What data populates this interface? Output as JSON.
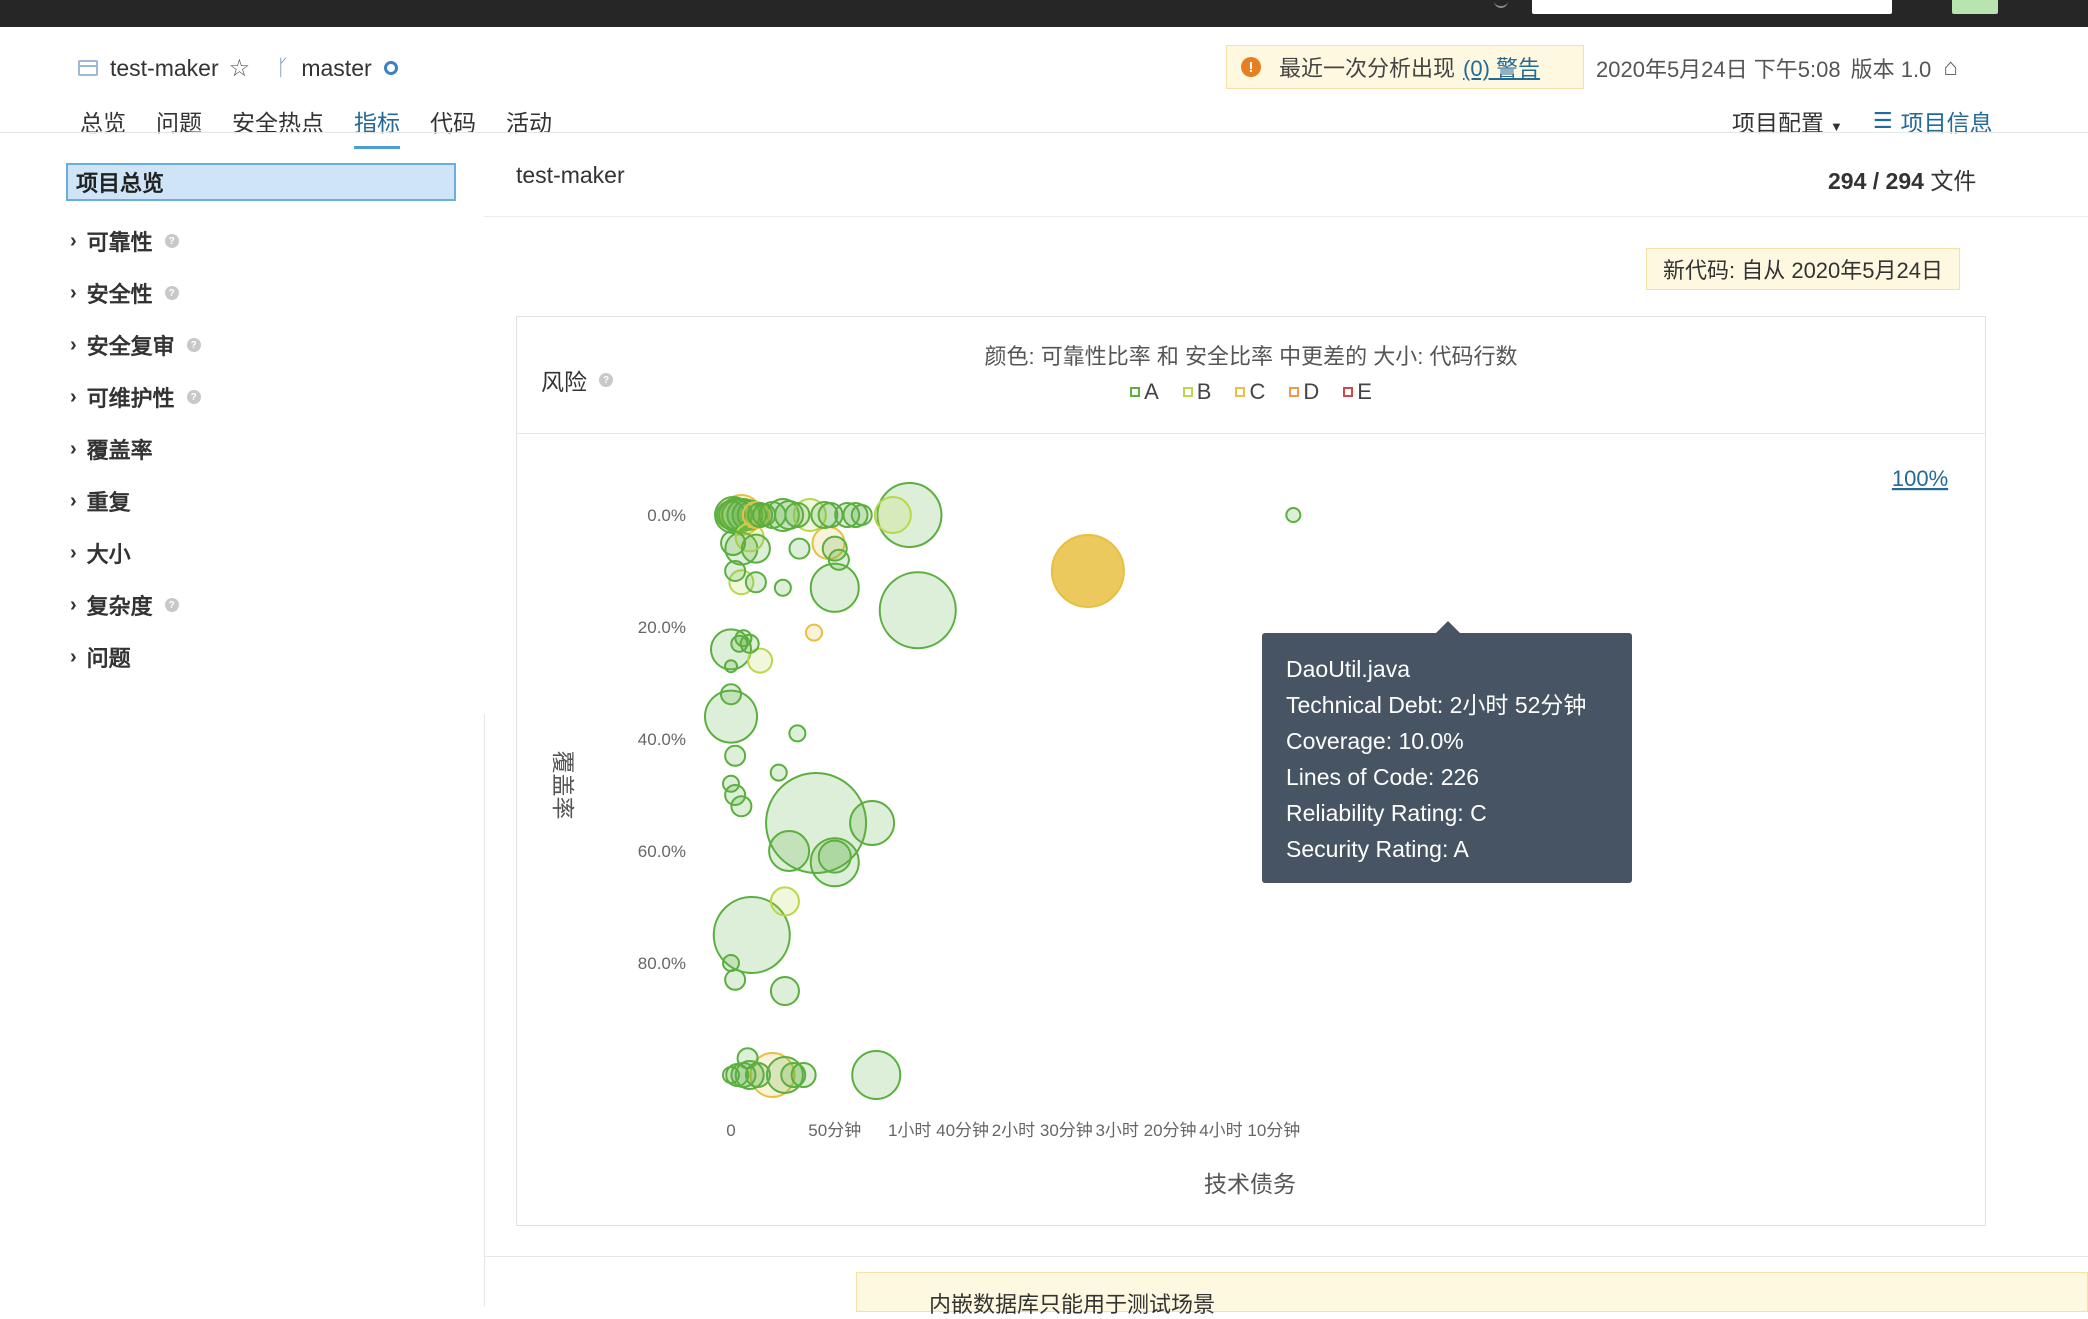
{
  "project": {
    "name": "test-maker",
    "branch": "master"
  },
  "warning": {
    "prefix": "最近一次分析出现",
    "link": "(0) 警告"
  },
  "analysis_meta": {
    "date": "2020年5月24日 下午5:08",
    "version": "版本 1.0"
  },
  "nav": {
    "tabs": [
      "总览",
      "问题",
      "安全热点",
      "指标",
      "代码",
      "活动"
    ],
    "active": "指标",
    "project_config": "项目配置",
    "project_info": "项目信息"
  },
  "sidebar": {
    "selected": "项目总览",
    "items": [
      {
        "label": "可靠性",
        "help": true
      },
      {
        "label": "安全性",
        "help": true
      },
      {
        "label": "安全复审",
        "help": true
      },
      {
        "label": "可维护性",
        "help": true
      },
      {
        "label": "覆盖率",
        "help": false
      },
      {
        "label": "重复",
        "help": false
      },
      {
        "label": "大小",
        "help": false
      },
      {
        "label": "复杂度",
        "help": true
      },
      {
        "label": "问题",
        "help": false
      }
    ]
  },
  "main": {
    "crumb": "test-maker",
    "files_count": "294 / 294",
    "files_label": "文件",
    "new_code": "新代码: 自从 2020年5月24日",
    "bottom_notice": "内嵌数据库只能用于测试场景"
  },
  "chart_data": {
    "type": "scatter",
    "title": "风险",
    "subtitle": "颜色: 可靠性比率 和 安全比率 中更差的  大小: 代码行数",
    "xlabel": "技术债务",
    "ylabel": "覆盖率",
    "x_unit": "minutes",
    "xlim": [
      0,
      280
    ],
    "ylim": [
      100,
      0
    ],
    "x_ticks": [
      {
        "value": 0,
        "label": "0"
      },
      {
        "value": 50,
        "label": "50分钟"
      },
      {
        "value": 100,
        "label": "1小时 40分钟"
      },
      {
        "value": 150,
        "label": "2小时 30分钟"
      },
      {
        "value": 200,
        "label": "3小时 20分钟"
      },
      {
        "value": 250,
        "label": "4小时 10分钟"
      }
    ],
    "y_ticks": [
      {
        "value": 0,
        "label": "0.0%"
      },
      {
        "value": 20,
        "label": "20.0%"
      },
      {
        "value": 40,
        "label": "40.0%"
      },
      {
        "value": 60,
        "label": "60.0%"
      },
      {
        "value": 80,
        "label": "80.0%"
      }
    ],
    "x_max_label": "100%",
    "legend": [
      {
        "label": "A",
        "color": "#5aaf3f"
      },
      {
        "label": "B",
        "color": "#b8d84a"
      },
      {
        "label": "C",
        "color": "#e8c040"
      },
      {
        "label": "D",
        "color": "#ec9a4d"
      },
      {
        "label": "E",
        "color": "#d64545"
      }
    ],
    "points": [
      {
        "x": 0,
        "y": 0,
        "r": 14,
        "rating": "A"
      },
      {
        "x": 1,
        "y": 0,
        "r": 18,
        "rating": "A"
      },
      {
        "x": 2,
        "y": 0,
        "r": 16,
        "rating": "A"
      },
      {
        "x": 3,
        "y": 0,
        "r": 15,
        "rating": "A"
      },
      {
        "x": 5,
        "y": 0,
        "r": 20,
        "rating": "C"
      },
      {
        "x": 6,
        "y": 0,
        "r": 16,
        "rating": "A"
      },
      {
        "x": 8,
        "y": 0,
        "r": 15,
        "rating": "A"
      },
      {
        "x": 10,
        "y": 0,
        "r": 14,
        "rating": "A"
      },
      {
        "x": 12,
        "y": 0,
        "r": 13,
        "rating": "C"
      },
      {
        "x": 14,
        "y": 0,
        "r": 12,
        "rating": "A"
      },
      {
        "x": 16,
        "y": 0,
        "r": 11,
        "rating": "A"
      },
      {
        "x": 20,
        "y": 0,
        "r": 13,
        "rating": "A"
      },
      {
        "x": 25,
        "y": 0,
        "r": 16,
        "rating": "A"
      },
      {
        "x": 28,
        "y": 0,
        "r": 14,
        "rating": "A"
      },
      {
        "x": 32,
        "y": 0,
        "r": 12,
        "rating": "A"
      },
      {
        "x": 38,
        "y": 0,
        "r": 16,
        "rating": "B"
      },
      {
        "x": 45,
        "y": 0,
        "r": 13,
        "rating": "A"
      },
      {
        "x": 48,
        "y": 0,
        "r": 12,
        "rating": "A"
      },
      {
        "x": 56,
        "y": 0,
        "r": 12,
        "rating": "A"
      },
      {
        "x": 60,
        "y": 0,
        "r": 12,
        "rating": "A"
      },
      {
        "x": 63,
        "y": 0,
        "r": 10,
        "rating": "A"
      },
      {
        "x": 78,
        "y": 0,
        "r": 18,
        "rating": "B"
      },
      {
        "x": 86,
        "y": 0,
        "r": 32,
        "rating": "A"
      },
      {
        "x": 1,
        "y": 5,
        "r": 12,
        "rating": "A"
      },
      {
        "x": 5,
        "y": 6,
        "r": 16,
        "rating": "A"
      },
      {
        "x": 9,
        "y": 4,
        "r": 14,
        "rating": "B"
      },
      {
        "x": 12,
        "y": 6,
        "r": 14,
        "rating": "A"
      },
      {
        "x": 33,
        "y": 6,
        "r": 10,
        "rating": "A"
      },
      {
        "x": 47,
        "y": 5,
        "r": 16,
        "rating": "C"
      },
      {
        "x": 50,
        "y": 6,
        "r": 12,
        "rating": "A"
      },
      {
        "x": 52,
        "y": 8,
        "r": 10,
        "rating": "A"
      },
      {
        "x": 2,
        "y": 10,
        "r": 10,
        "rating": "A"
      },
      {
        "x": 5,
        "y": 12,
        "r": 12,
        "rating": "B"
      },
      {
        "x": 12,
        "y": 12,
        "r": 10,
        "rating": "A"
      },
      {
        "x": 25,
        "y": 13,
        "r": 8,
        "rating": "A"
      },
      {
        "x": 50,
        "y": 13,
        "r": 24,
        "rating": "A"
      },
      {
        "x": 90,
        "y": 17,
        "r": 38,
        "rating": "A"
      },
      {
        "x": 40,
        "y": 21,
        "r": 8,
        "rating": "C"
      },
      {
        "x": 0,
        "y": 24,
        "r": 20,
        "rating": "A"
      },
      {
        "x": 4,
        "y": 23,
        "r": 8,
        "rating": "A"
      },
      {
        "x": 6,
        "y": 22,
        "r": 8,
        "rating": "A"
      },
      {
        "x": 9,
        "y": 23,
        "r": 9,
        "rating": "A"
      },
      {
        "x": 14,
        "y": 26,
        "r": 12,
        "rating": "B"
      },
      {
        "x": 0,
        "y": 27,
        "r": 6,
        "rating": "A"
      },
      {
        "x": 0,
        "y": 32,
        "r": 10,
        "rating": "A"
      },
      {
        "x": 0,
        "y": 36,
        "r": 26,
        "rating": "A"
      },
      {
        "x": 32,
        "y": 39,
        "r": 8,
        "rating": "A"
      },
      {
        "x": 2,
        "y": 43,
        "r": 10,
        "rating": "A"
      },
      {
        "x": 23,
        "y": 46,
        "r": 8,
        "rating": "A"
      },
      {
        "x": 0,
        "y": 48,
        "r": 8,
        "rating": "A"
      },
      {
        "x": 2,
        "y": 50,
        "r": 10,
        "rating": "A"
      },
      {
        "x": 5,
        "y": 52,
        "r": 10,
        "rating": "A"
      },
      {
        "x": 41,
        "y": 55,
        "r": 50,
        "rating": "A"
      },
      {
        "x": 68,
        "y": 55,
        "r": 22,
        "rating": "A"
      },
      {
        "x": 28,
        "y": 60,
        "r": 20,
        "rating": "A"
      },
      {
        "x": 50,
        "y": 62,
        "r": 24,
        "rating": "A"
      },
      {
        "x": 50,
        "y": 61,
        "r": 16,
        "rating": "A"
      },
      {
        "x": 26,
        "y": 69,
        "r": 14,
        "rating": "B"
      },
      {
        "x": 10,
        "y": 75,
        "r": 38,
        "rating": "A"
      },
      {
        "x": 0,
        "y": 80,
        "r": 8,
        "rating": "A"
      },
      {
        "x": 2,
        "y": 83,
        "r": 10,
        "rating": "A"
      },
      {
        "x": 26,
        "y": 85,
        "r": 14,
        "rating": "A"
      },
      {
        "x": 0,
        "y": 100,
        "r": 8,
        "rating": "A"
      },
      {
        "x": 3,
        "y": 100,
        "r": 11,
        "rating": "A"
      },
      {
        "x": 6,
        "y": 100,
        "r": 12,
        "rating": "A"
      },
      {
        "x": 8,
        "y": 97,
        "r": 10,
        "rating": "A"
      },
      {
        "x": 9,
        "y": 100,
        "r": 14,
        "rating": "A"
      },
      {
        "x": 13,
        "y": 100,
        "r": 12,
        "rating": "A"
      },
      {
        "x": 20,
        "y": 100,
        "r": 22,
        "rating": "C"
      },
      {
        "x": 26,
        "y": 100,
        "r": 18,
        "rating": "A"
      },
      {
        "x": 30,
        "y": 100,
        "r": 12,
        "rating": "A"
      },
      {
        "x": 35,
        "y": 100,
        "r": 12,
        "rating": "A"
      },
      {
        "x": 70,
        "y": 100,
        "r": 24,
        "rating": "A"
      },
      {
        "x": 271,
        "y": 0,
        "r": 7,
        "rating": "A"
      }
    ],
    "highlight": {
      "x": 172,
      "y": 10,
      "r": 36,
      "rating": "C"
    },
    "tooltip": {
      "file": "DaoUtil.java",
      "lines": [
        "Technical Debt: 2小时 52分钟",
        "Coverage: 10.0%",
        "Lines of Code: 226",
        "Reliability Rating: C",
        "Security Rating: A"
      ]
    }
  }
}
